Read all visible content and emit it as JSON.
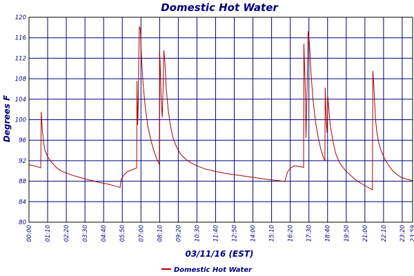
{
  "chart_data": {
    "type": "line",
    "title": "Domestic Hot Water",
    "xlabel": "03/11/16 (EST)",
    "ylabel": "Degrees F",
    "ylim": [
      80,
      120
    ],
    "yticks": [
      80,
      84,
      88,
      92,
      96,
      100,
      104,
      108,
      112,
      116,
      120
    ],
    "xlim_minutes": [
      0,
      1439
    ],
    "xticks": [
      {
        "label": "00:00",
        "minute": 0
      },
      {
        "label": "01:10",
        "minute": 70
      },
      {
        "label": "02:20",
        "minute": 140
      },
      {
        "label": "03:30",
        "minute": 210
      },
      {
        "label": "04:40",
        "minute": 280
      },
      {
        "label": "05:50",
        "minute": 350
      },
      {
        "label": "07:00",
        "minute": 420
      },
      {
        "label": "08:10",
        "minute": 490
      },
      {
        "label": "09:20",
        "minute": 560
      },
      {
        "label": "10:30",
        "minute": 630
      },
      {
        "label": "11:40",
        "minute": 700
      },
      {
        "label": "12:50",
        "minute": 770
      },
      {
        "label": "14:00",
        "minute": 840
      },
      {
        "label": "15:10",
        "minute": 910
      },
      {
        "label": "16:20",
        "minute": 980
      },
      {
        "label": "17:30",
        "minute": 1050
      },
      {
        "label": "18:40",
        "minute": 1120
      },
      {
        "label": "19:50",
        "minute": 1190
      },
      {
        "label": "21:00",
        "minute": 1260
      },
      {
        "label": "22:10",
        "minute": 1330
      },
      {
        "label": "23:20",
        "minute": 1400
      },
      {
        "label": "23:59",
        "minute": 1439
      }
    ],
    "grid": true,
    "legend_position": "bottom",
    "series": [
      {
        "name": "Domestic Hot Water",
        "color": "#aa0000",
        "points": [
          [
            0,
            91.2
          ],
          [
            20,
            91.0
          ],
          [
            40,
            90.7
          ],
          [
            44,
            90.6
          ],
          [
            46,
            101.5
          ],
          [
            50,
            98.0
          ],
          [
            55,
            95.5
          ],
          [
            60,
            94.0
          ],
          [
            70,
            92.8
          ],
          [
            80,
            92.0
          ],
          [
            100,
            90.8
          ],
          [
            120,
            90.0
          ],
          [
            140,
            89.6
          ],
          [
            160,
            89.2
          ],
          [
            180,
            88.9
          ],
          [
            200,
            88.6
          ],
          [
            220,
            88.3
          ],
          [
            240,
            88.1
          ],
          [
            260,
            87.8
          ],
          [
            280,
            87.6
          ],
          [
            300,
            87.4
          ],
          [
            320,
            87.1
          ],
          [
            335,
            86.9
          ],
          [
            342,
            86.8
          ],
          [
            345,
            88.2
          ],
          [
            355,
            89.2
          ],
          [
            370,
            89.9
          ],
          [
            390,
            90.3
          ],
          [
            404,
            90.6
          ],
          [
            405,
            107.5
          ],
          [
            408,
            99.0
          ],
          [
            410,
            103.0
          ],
          [
            412,
            113.0
          ],
          [
            414,
            118.2
          ],
          [
            418,
            117.5
          ],
          [
            422,
            112.0
          ],
          [
            428,
            107.0
          ],
          [
            435,
            103.0
          ],
          [
            445,
            99.0
          ],
          [
            455,
            96.5
          ],
          [
            465,
            94.5
          ],
          [
            478,
            92.5
          ],
          [
            486,
            91.6
          ],
          [
            489,
            91.3
          ],
          [
            490,
            113.5
          ],
          [
            492,
            111.0
          ],
          [
            495,
            105.0
          ],
          [
            498,
            102.0
          ],
          [
            500,
            100.5
          ],
          [
            503,
            106.0
          ],
          [
            506,
            113.5
          ],
          [
            510,
            111.0
          ],
          [
            515,
            106.0
          ],
          [
            522,
            102.0
          ],
          [
            530,
            99.0
          ],
          [
            540,
            96.5
          ],
          [
            555,
            94.5
          ],
          [
            570,
            93.2
          ],
          [
            590,
            92.2
          ],
          [
            610,
            91.5
          ],
          [
            630,
            91.0
          ],
          [
            660,
            90.4
          ],
          [
            700,
            89.9
          ],
          [
            740,
            89.5
          ],
          [
            780,
            89.2
          ],
          [
            820,
            88.9
          ],
          [
            860,
            88.6
          ],
          [
            900,
            88.3
          ],
          [
            940,
            88.1
          ],
          [
            960,
            87.9
          ],
          [
            963,
            88.7
          ],
          [
            970,
            89.8
          ],
          [
            982,
            90.6
          ],
          [
            995,
            91.0
          ],
          [
            1020,
            90.8
          ],
          [
            1030,
            90.7
          ],
          [
            1031,
            114.8
          ],
          [
            1034,
            110.0
          ],
          [
            1037,
            105.0
          ],
          [
            1039,
            96.5
          ],
          [
            1044,
            108.0
          ],
          [
            1047,
            117.2
          ],
          [
            1052,
            115.0
          ],
          [
            1058,
            109.0
          ],
          [
            1065,
            104.0
          ],
          [
            1075,
            99.5
          ],
          [
            1085,
            96.5
          ],
          [
            1095,
            94.2
          ],
          [
            1103,
            92.8
          ],
          [
            1110,
            92.0
          ],
          [
            1111,
            106.2
          ],
          [
            1113,
            103.0
          ],
          [
            1116,
            99.0
          ],
          [
            1118,
            97.5
          ],
          [
            1121,
            104.5
          ],
          [
            1124,
            102.5
          ],
          [
            1130,
            99.0
          ],
          [
            1140,
            95.8
          ],
          [
            1150,
            93.5
          ],
          [
            1165,
            91.6
          ],
          [
            1185,
            90.2
          ],
          [
            1205,
            89.2
          ],
          [
            1225,
            88.3
          ],
          [
            1245,
            87.6
          ],
          [
            1265,
            87.0
          ],
          [
            1282,
            86.5
          ],
          [
            1288,
            86.3
          ],
          [
            1290,
            109.5
          ],
          [
            1293,
            107.0
          ],
          [
            1297,
            103.0
          ],
          [
            1300,
            100.0
          ],
          [
            1305,
            97.5
          ],
          [
            1312,
            95.5
          ],
          [
            1322,
            93.8
          ],
          [
            1335,
            92.3
          ],
          [
            1350,
            91.0
          ],
          [
            1365,
            90.0
          ],
          [
            1380,
            89.3
          ],
          [
            1395,
            88.8
          ],
          [
            1410,
            88.5
          ],
          [
            1425,
            88.3
          ],
          [
            1439,
            88.1
          ]
        ]
      }
    ]
  }
}
